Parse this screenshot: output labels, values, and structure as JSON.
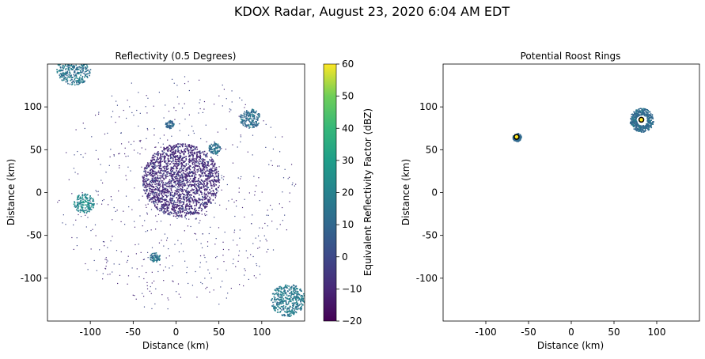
{
  "figure": {
    "title": "KDOX Radar, August 23, 2020 6:04 AM EDT"
  },
  "chart_data": [
    {
      "type": "heatmap",
      "title": "Reflectivity (0.5 Degrees)",
      "xlabel": "Distance (km)",
      "ylabel": "Distance (km)",
      "xlim": [
        -150,
        150
      ],
      "ylim": [
        -150,
        150
      ],
      "xticks": [
        -100,
        -50,
        0,
        50,
        100
      ],
      "yticks": [
        -100,
        -50,
        0,
        50,
        100
      ],
      "xtick_labels": [
        "-100",
        "-50",
        "0",
        "50",
        "100"
      ],
      "ytick_labels": [
        "-100",
        "-50",
        "0",
        "50",
        "100"
      ],
      "grid": false,
      "colorbar": {
        "label": "Equivalent Reflectivity Factor (dBZ)",
        "range": [
          -20,
          60
        ],
        "ticks": [
          -20,
          -10,
          0,
          10,
          20,
          30,
          40,
          50,
          60
        ],
        "tick_labels": [
          "−20",
          "−10",
          "0",
          "10",
          "20",
          "30",
          "40",
          "50",
          "60"
        ],
        "colormap": "viridis"
      },
      "echo_regions": [
        {
          "name": "central clutter",
          "x": 5,
          "y": 15,
          "extent_km": 45,
          "dbz": -8
        },
        {
          "name": "north-east ring",
          "x": 86,
          "y": 87,
          "extent_km": 12,
          "dbz": 12
        },
        {
          "name": "ring near 45,52",
          "x": 44,
          "y": 52,
          "extent_km": 7,
          "dbz": 14
        },
        {
          "name": "ring near -8,80",
          "x": -8,
          "y": 80,
          "extent_km": 5,
          "dbz": 10
        },
        {
          "name": "west cluster",
          "x": -108,
          "y": -12,
          "extent_km": 12,
          "dbz": 22
        },
        {
          "name": "south cluster",
          "x": -25,
          "y": -75,
          "extent_km": 6,
          "dbz": 14
        },
        {
          "name": "north-west cluster",
          "x": -120,
          "y": 145,
          "extent_km": 20,
          "dbz": 15
        },
        {
          "name": "south-east cluster",
          "x": 130,
          "y": -125,
          "extent_km": 20,
          "dbz": 18
        }
      ]
    },
    {
      "type": "heatmap",
      "title": "Potential Roost Rings",
      "xlabel": "Distance (km)",
      "ylabel": "Distance (km)",
      "xlim": [
        -150,
        150
      ],
      "ylim": [
        -150,
        150
      ],
      "xticks": [
        -100,
        -50,
        0,
        50,
        100
      ],
      "yticks": [
        -100,
        -50,
        0,
        50,
        100
      ],
      "xtick_labels": [
        "-100",
        "-50",
        "0",
        "50",
        "100"
      ],
      "ytick_labels": [
        "-100",
        "-50",
        "0",
        "50",
        "100"
      ],
      "grid": false,
      "rings": [
        {
          "x": -64,
          "y": 65,
          "extent_km": 5
        },
        {
          "x": 82,
          "y": 85,
          "extent_km": 14
        }
      ],
      "centers": [
        {
          "x": -64,
          "y": 65
        },
        {
          "x": 82,
          "y": 85
        }
      ]
    }
  ]
}
